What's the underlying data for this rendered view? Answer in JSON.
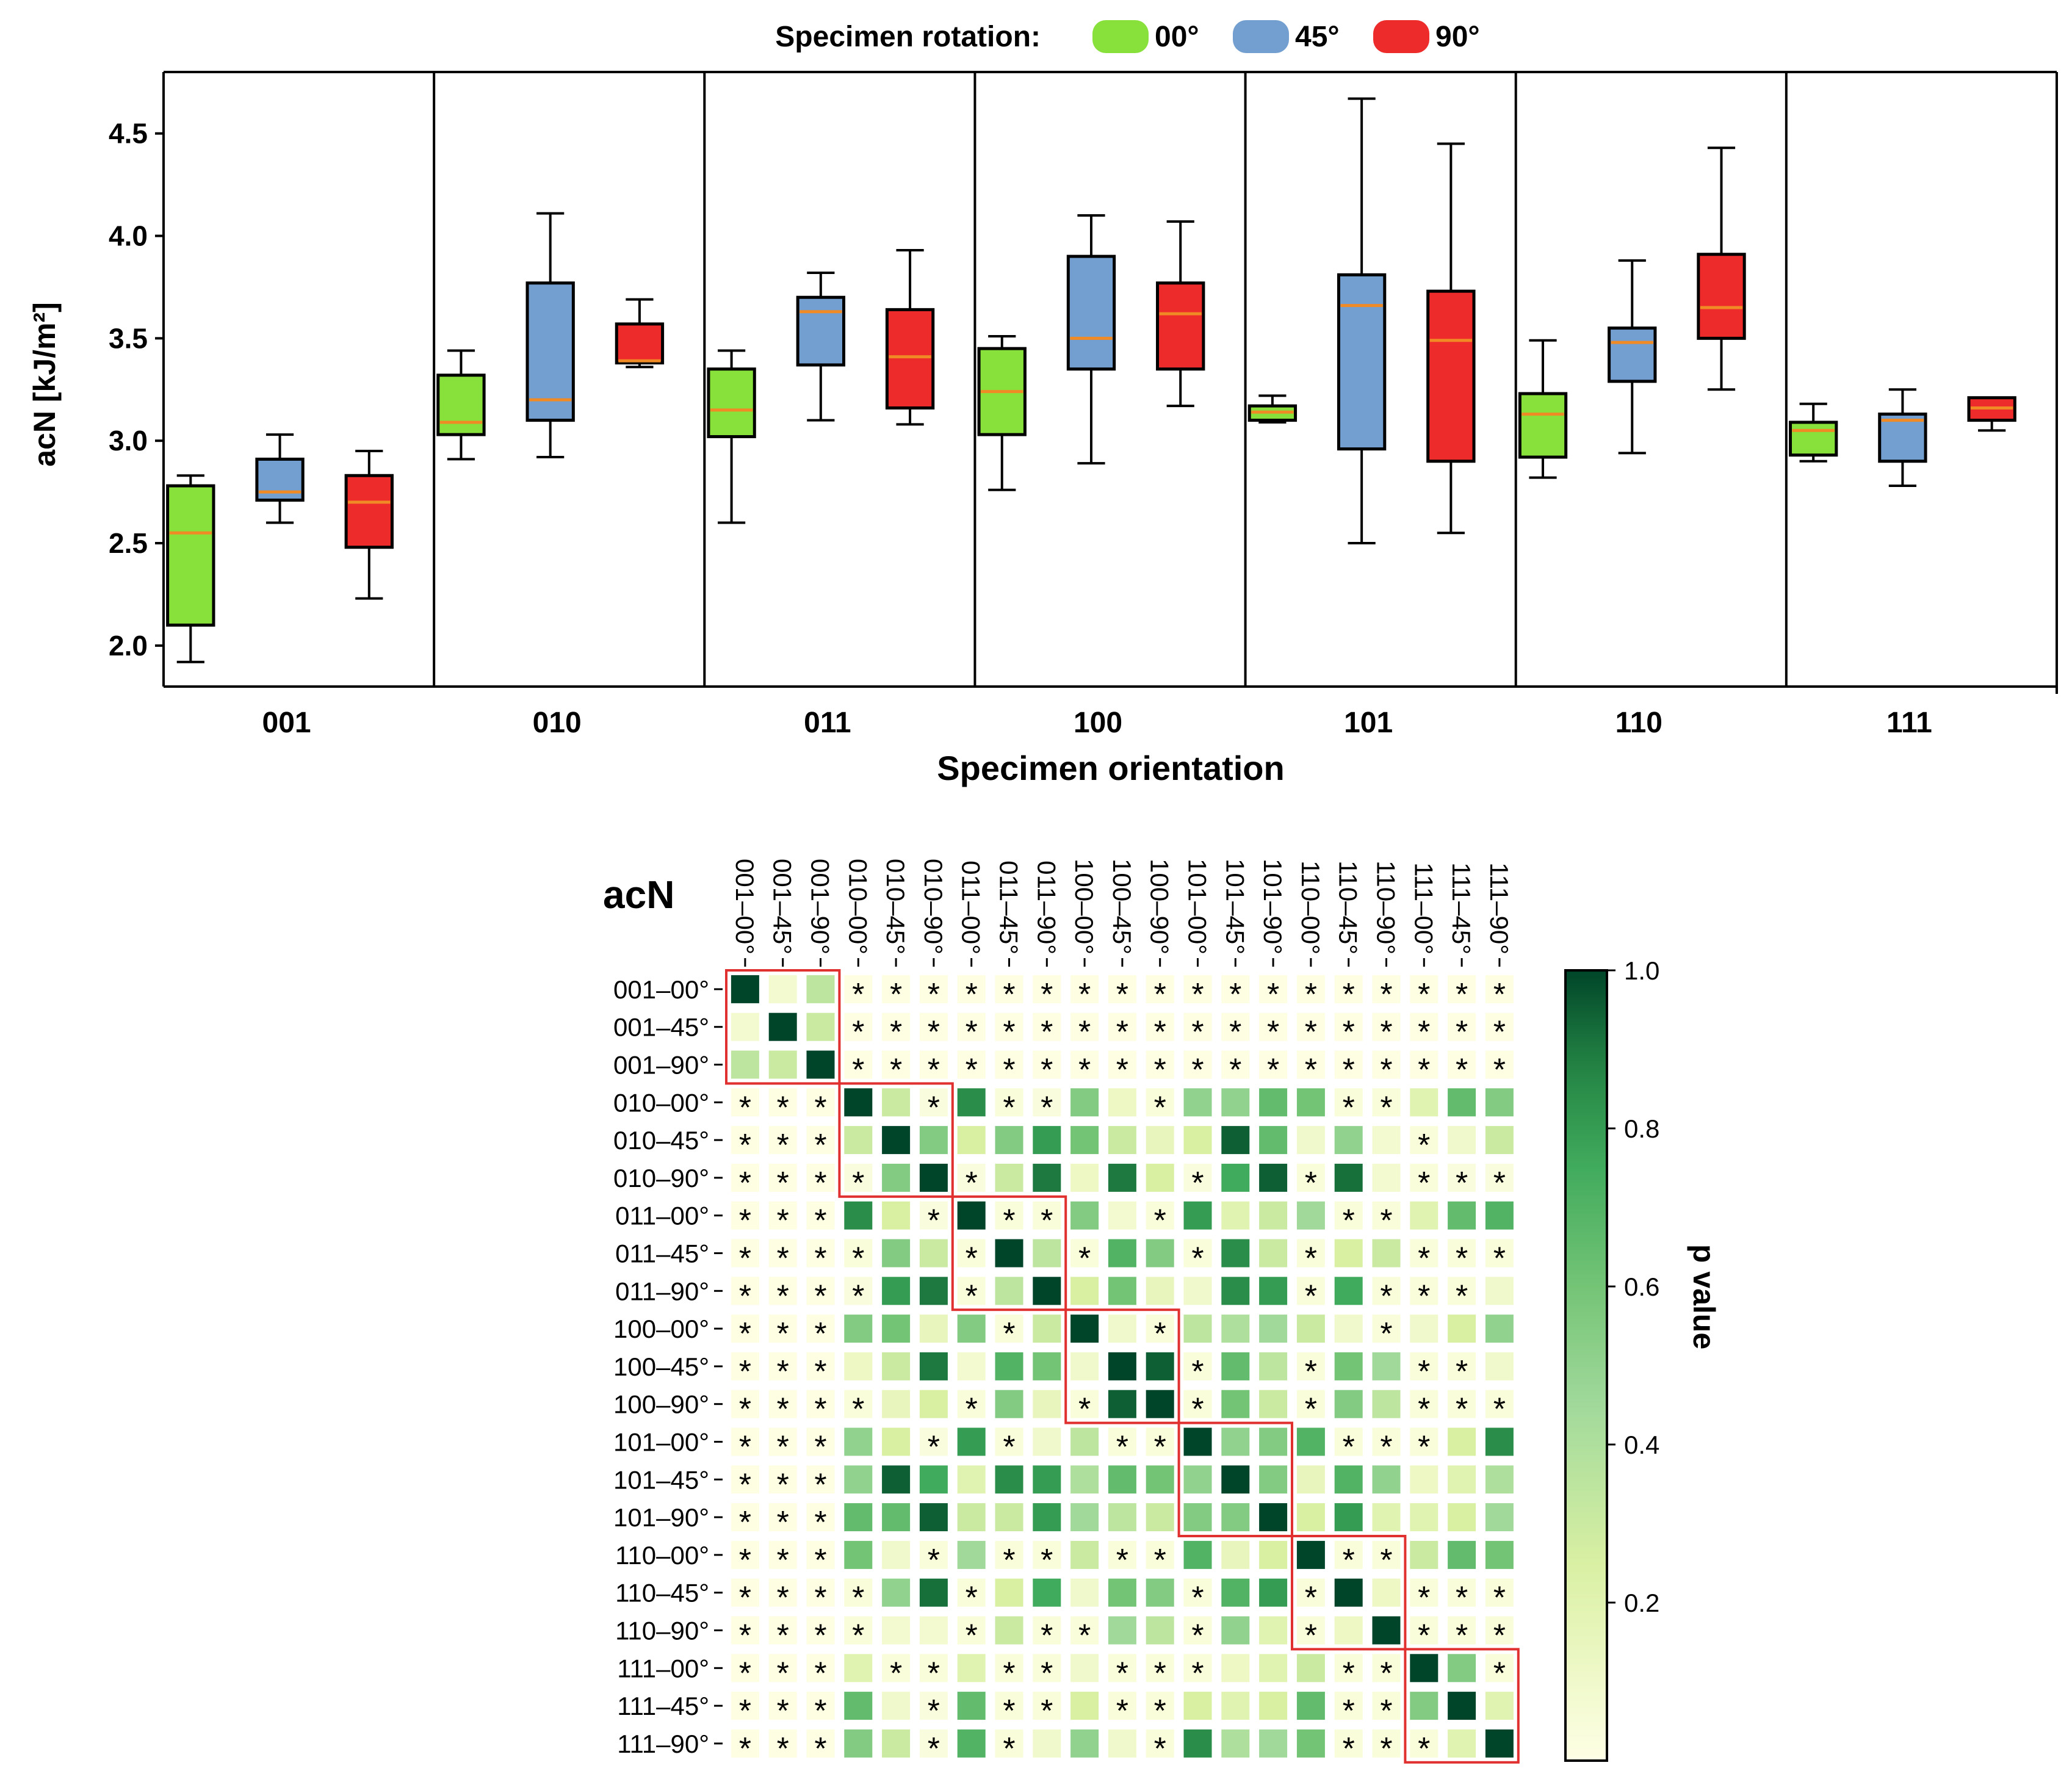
{
  "legend": {
    "title": "Specimen rotation:",
    "items": [
      {
        "label": "00°",
        "color": "#88E03A"
      },
      {
        "label": "45°",
        "color": "#739FD0"
      },
      {
        "label": "90°",
        "color": "#EE2B2B"
      }
    ]
  },
  "chart_data": [
    {
      "type": "box",
      "title": "",
      "ylabel": "acN [kJ/m²]",
      "xlabel": "Specimen orientation",
      "ylim": [
        1.8,
        4.8
      ],
      "yticks": [
        "2.0",
        "2.5",
        "3.0",
        "3.5",
        "4.0",
        "4.5"
      ],
      "median_color": "#F08A24",
      "categories": [
        "001",
        "010",
        "011",
        "100",
        "101",
        "110",
        "111"
      ],
      "series": [
        {
          "name": "00°",
          "color": "#88E03A",
          "boxes": [
            {
              "min": 1.92,
              "q1": 2.1,
              "median": 2.55,
              "q3": 2.78,
              "max": 2.83
            },
            {
              "min": 2.91,
              "q1": 3.03,
              "median": 3.09,
              "q3": 3.32,
              "max": 3.44
            },
            {
              "min": 2.6,
              "q1": 3.02,
              "median": 3.15,
              "q3": 3.35,
              "max": 3.44
            },
            {
              "min": 2.76,
              "q1": 3.03,
              "median": 3.24,
              "q3": 3.45,
              "max": 3.51
            },
            {
              "min": 3.09,
              "q1": 3.1,
              "median": 3.14,
              "q3": 3.17,
              "max": 3.22
            },
            {
              "min": 2.82,
              "q1": 2.92,
              "median": 3.13,
              "q3": 3.23,
              "max": 3.49
            },
            {
              "min": 2.9,
              "q1": 2.93,
              "median": 3.05,
              "q3": 3.09,
              "max": 3.18
            }
          ]
        },
        {
          "name": "45°",
          "color": "#739FD0",
          "boxes": [
            {
              "min": 2.6,
              "q1": 2.71,
              "median": 2.75,
              "q3": 2.91,
              "max": 3.03
            },
            {
              "min": 2.92,
              "q1": 3.1,
              "median": 3.2,
              "q3": 3.77,
              "max": 4.11
            },
            {
              "min": 3.1,
              "q1": 3.37,
              "median": 3.63,
              "q3": 3.7,
              "max": 3.82
            },
            {
              "min": 2.89,
              "q1": 3.35,
              "median": 3.5,
              "q3": 3.9,
              "max": 4.1
            },
            {
              "min": 2.5,
              "q1": 2.96,
              "median": 3.66,
              "q3": 3.81,
              "max": 4.67
            },
            {
              "min": 2.94,
              "q1": 3.29,
              "median": 3.48,
              "q3": 3.55,
              "max": 3.88
            },
            {
              "min": 2.78,
              "q1": 2.9,
              "median": 3.1,
              "q3": 3.13,
              "max": 3.25
            }
          ]
        },
        {
          "name": "90°",
          "color": "#EE2B2B",
          "boxes": [
            {
              "min": 2.23,
              "q1": 2.48,
              "median": 2.7,
              "q3": 2.83,
              "max": 2.95
            },
            {
              "min": 3.36,
              "q1": 3.38,
              "median": 3.39,
              "q3": 3.57,
              "max": 3.69
            },
            {
              "min": 3.08,
              "q1": 3.16,
              "median": 3.41,
              "q3": 3.64,
              "max": 3.93
            },
            {
              "min": 3.17,
              "q1": 3.35,
              "median": 3.62,
              "q3": 3.77,
              "max": 4.07
            },
            {
              "min": 2.55,
              "q1": 2.9,
              "median": 3.49,
              "q3": 3.73,
              "max": 4.45
            },
            {
              "min": 3.25,
              "q1": 3.5,
              "median": 3.65,
              "q3": 3.91,
              "max": 4.43
            },
            {
              "min": 3.05,
              "q1": 3.1,
              "median": 3.16,
              "q3": 3.21,
              "max": 3.21
            }
          ]
        }
      ]
    },
    {
      "type": "heatmap",
      "title": "acN",
      "labels": [
        "001–00°",
        "001–45°",
        "001–90°",
        "010–00°",
        "010–45°",
        "010–90°",
        "011–00°",
        "011–45°",
        "011–90°",
        "100–00°",
        "100–45°",
        "100–90°",
        "101–00°",
        "101–45°",
        "101–90°",
        "110–00°",
        "110–45°",
        "110–90°",
        "111–00°",
        "111–45°",
        "111–90°"
      ],
      "colorbar": {
        "label": "p value",
        "range": [
          0,
          1.0
        ],
        "ticks": [
          "0.2",
          "0.4",
          "0.6",
          "0.8",
          "1.0"
        ]
      },
      "significance_marker": "*",
      "values": [
        [
          1.0,
          0.08,
          0.35,
          0.01,
          0.01,
          0.01,
          0.01,
          0.01,
          0.01,
          0.01,
          0.01,
          0.01,
          0.01,
          0.01,
          0.01,
          0.01,
          0.01,
          0.01,
          0.01,
          0.01,
          0.01
        ],
        [
          0.08,
          1.0,
          0.3,
          0.01,
          0.01,
          0.01,
          0.01,
          0.01,
          0.01,
          0.01,
          0.01,
          0.01,
          0.01,
          0.01,
          0.01,
          0.01,
          0.01,
          0.01,
          0.01,
          0.01,
          0.01
        ],
        [
          0.35,
          0.3,
          1.0,
          0.01,
          0.01,
          0.01,
          0.01,
          0.01,
          0.01,
          0.01,
          0.01,
          0.01,
          0.01,
          0.01,
          0.01,
          0.01,
          0.01,
          0.01,
          0.01,
          0.01,
          0.01
        ],
        [
          0.01,
          0.01,
          0.01,
          1.0,
          0.3,
          0.03,
          0.85,
          0.04,
          0.03,
          0.55,
          0.12,
          0.04,
          0.5,
          0.5,
          0.65,
          0.6,
          0.04,
          0.04,
          0.2,
          0.65,
          0.55
        ],
        [
          0.01,
          0.01,
          0.01,
          0.3,
          1.0,
          0.55,
          0.25,
          0.55,
          0.8,
          0.6,
          0.3,
          0.15,
          0.25,
          0.95,
          0.65,
          0.1,
          0.5,
          0.08,
          0.04,
          0.1,
          0.3
        ],
        [
          0.01,
          0.01,
          0.01,
          0.03,
          0.55,
          1.0,
          0.03,
          0.3,
          0.9,
          0.12,
          0.9,
          0.25,
          0.03,
          0.75,
          0.95,
          0.04,
          0.92,
          0.08,
          0.04,
          0.03,
          0.03
        ],
        [
          0.01,
          0.01,
          0.01,
          0.85,
          0.25,
          0.03,
          1.0,
          0.04,
          0.04,
          0.55,
          0.08,
          0.04,
          0.8,
          0.2,
          0.3,
          0.45,
          0.04,
          0.04,
          0.2,
          0.65,
          0.7
        ],
        [
          0.01,
          0.01,
          0.01,
          0.04,
          0.55,
          0.3,
          0.04,
          1.0,
          0.35,
          0.04,
          0.7,
          0.55,
          0.04,
          0.85,
          0.3,
          0.04,
          0.25,
          0.3,
          0.04,
          0.04,
          0.04
        ],
        [
          0.01,
          0.01,
          0.01,
          0.03,
          0.8,
          0.9,
          0.04,
          0.35,
          1.0,
          0.25,
          0.6,
          0.15,
          0.1,
          0.85,
          0.8,
          0.04,
          0.75,
          0.04,
          0.04,
          0.04,
          0.1
        ],
        [
          0.01,
          0.01,
          0.01,
          0.55,
          0.6,
          0.15,
          0.55,
          0.04,
          0.3,
          1.0,
          0.1,
          0.04,
          0.35,
          0.4,
          0.45,
          0.3,
          0.1,
          0.04,
          0.1,
          0.25,
          0.5
        ],
        [
          0.01,
          0.01,
          0.01,
          0.12,
          0.3,
          0.9,
          0.08,
          0.7,
          0.6,
          0.1,
          1.0,
          0.95,
          0.04,
          0.65,
          0.35,
          0.04,
          0.6,
          0.45,
          0.04,
          0.04,
          0.1
        ],
        [
          0.01,
          0.01,
          0.01,
          0.04,
          0.15,
          0.25,
          0.04,
          0.55,
          0.15,
          0.04,
          0.95,
          1.0,
          0.04,
          0.6,
          0.3,
          0.04,
          0.55,
          0.35,
          0.04,
          0.04,
          0.04
        ],
        [
          0.01,
          0.01,
          0.01,
          0.5,
          0.25,
          0.03,
          0.8,
          0.04,
          0.1,
          0.35,
          0.04,
          0.04,
          1.0,
          0.5,
          0.55,
          0.7,
          0.04,
          0.04,
          0.04,
          0.25,
          0.85
        ],
        [
          0.01,
          0.01,
          0.01,
          0.5,
          0.95,
          0.75,
          0.2,
          0.85,
          0.8,
          0.4,
          0.65,
          0.6,
          0.5,
          1.0,
          0.55,
          0.15,
          0.7,
          0.5,
          0.12,
          0.2,
          0.4
        ],
        [
          0.01,
          0.01,
          0.01,
          0.65,
          0.65,
          0.95,
          0.3,
          0.3,
          0.8,
          0.45,
          0.35,
          0.3,
          0.55,
          0.55,
          1.0,
          0.25,
          0.8,
          0.2,
          0.2,
          0.25,
          0.45
        ],
        [
          0.01,
          0.01,
          0.01,
          0.6,
          0.1,
          0.04,
          0.45,
          0.04,
          0.04,
          0.3,
          0.04,
          0.04,
          0.7,
          0.15,
          0.25,
          1.0,
          0.04,
          0.04,
          0.3,
          0.65,
          0.6
        ],
        [
          0.01,
          0.01,
          0.01,
          0.04,
          0.5,
          0.92,
          0.04,
          0.25,
          0.75,
          0.1,
          0.6,
          0.55,
          0.04,
          0.7,
          0.8,
          0.04,
          1.0,
          0.12,
          0.04,
          0.04,
          0.04
        ],
        [
          0.01,
          0.01,
          0.01,
          0.04,
          0.08,
          0.08,
          0.04,
          0.3,
          0.04,
          0.04,
          0.45,
          0.35,
          0.04,
          0.5,
          0.2,
          0.04,
          0.12,
          1.0,
          0.04,
          0.04,
          0.04
        ],
        [
          0.01,
          0.01,
          0.01,
          0.2,
          0.04,
          0.04,
          0.2,
          0.04,
          0.04,
          0.1,
          0.04,
          0.04,
          0.04,
          0.12,
          0.2,
          0.3,
          0.04,
          0.04,
          1.0,
          0.55,
          0.04
        ],
        [
          0.01,
          0.01,
          0.01,
          0.65,
          0.1,
          0.03,
          0.65,
          0.04,
          0.04,
          0.25,
          0.04,
          0.04,
          0.25,
          0.2,
          0.25,
          0.65,
          0.04,
          0.04,
          0.55,
          1.0,
          0.2
        ],
        [
          0.01,
          0.01,
          0.01,
          0.55,
          0.3,
          0.03,
          0.7,
          0.04,
          0.1,
          0.5,
          0.1,
          0.04,
          0.85,
          0.4,
          0.45,
          0.6,
          0.04,
          0.04,
          0.04,
          0.2,
          1.0
        ]
      ],
      "significant": [
        [
          0,
          0,
          0,
          1,
          1,
          1,
          1,
          1,
          1,
          1,
          1,
          1,
          1,
          1,
          1,
          1,
          1,
          1,
          1,
          1,
          1
        ],
        [
          0,
          0,
          0,
          1,
          1,
          1,
          1,
          1,
          1,
          1,
          1,
          1,
          1,
          1,
          1,
          1,
          1,
          1,
          1,
          1,
          1
        ],
        [
          0,
          0,
          0,
          1,
          1,
          1,
          1,
          1,
          1,
          1,
          1,
          1,
          1,
          1,
          1,
          1,
          1,
          1,
          1,
          1,
          1
        ],
        [
          1,
          1,
          1,
          0,
          0,
          1,
          0,
          1,
          1,
          0,
          0,
          1,
          0,
          0,
          0,
          0,
          1,
          1,
          0,
          0,
          0
        ],
        [
          1,
          1,
          1,
          0,
          0,
          0,
          0,
          0,
          0,
          0,
          0,
          0,
          0,
          0,
          0,
          0,
          0,
          0,
          1,
          0,
          0
        ],
        [
          1,
          1,
          1,
          1,
          0,
          0,
          1,
          0,
          0,
          0,
          0,
          0,
          1,
          0,
          0,
          1,
          0,
          0,
          1,
          1,
          1
        ],
        [
          1,
          1,
          1,
          0,
          0,
          1,
          0,
          1,
          1,
          0,
          0,
          1,
          0,
          0,
          0,
          0,
          1,
          1,
          0,
          0,
          0
        ],
        [
          1,
          1,
          1,
          1,
          0,
          0,
          1,
          0,
          0,
          1,
          0,
          0,
          1,
          0,
          0,
          1,
          0,
          0,
          1,
          1,
          1
        ],
        [
          1,
          1,
          1,
          1,
          0,
          0,
          1,
          0,
          0,
          0,
          0,
          0,
          0,
          0,
          0,
          1,
          0,
          1,
          1,
          1,
          0
        ],
        [
          1,
          1,
          1,
          0,
          0,
          0,
          0,
          1,
          0,
          0,
          0,
          1,
          0,
          0,
          0,
          0,
          0,
          1,
          0,
          0,
          0
        ],
        [
          1,
          1,
          1,
          0,
          0,
          0,
          0,
          0,
          0,
          0,
          0,
          0,
          1,
          0,
          0,
          1,
          0,
          0,
          1,
          1,
          0
        ],
        [
          1,
          1,
          1,
          1,
          0,
          0,
          1,
          0,
          0,
          1,
          0,
          0,
          1,
          0,
          0,
          1,
          0,
          0,
          1,
          1,
          1
        ],
        [
          1,
          1,
          1,
          0,
          0,
          1,
          0,
          1,
          0,
          0,
          1,
          1,
          0,
          0,
          0,
          0,
          1,
          1,
          1,
          0,
          0
        ],
        [
          1,
          1,
          1,
          0,
          0,
          0,
          0,
          0,
          0,
          0,
          0,
          0,
          0,
          0,
          0,
          0,
          0,
          0,
          0,
          0,
          0
        ],
        [
          1,
          1,
          1,
          0,
          0,
          0,
          0,
          0,
          0,
          0,
          0,
          0,
          0,
          0,
          0,
          0,
          0,
          0,
          0,
          0,
          0
        ],
        [
          1,
          1,
          1,
          0,
          0,
          1,
          0,
          1,
          1,
          0,
          1,
          1,
          0,
          0,
          0,
          0,
          1,
          1,
          0,
          0,
          0
        ],
        [
          1,
          1,
          1,
          1,
          0,
          0,
          1,
          0,
          0,
          0,
          0,
          0,
          1,
          0,
          0,
          1,
          0,
          0,
          1,
          1,
          1
        ],
        [
          1,
          1,
          1,
          1,
          0,
          0,
          1,
          0,
          1,
          1,
          0,
          0,
          1,
          0,
          0,
          1,
          0,
          0,
          1,
          1,
          1
        ],
        [
          1,
          1,
          1,
          0,
          1,
          1,
          0,
          1,
          1,
          0,
          1,
          1,
          1,
          0,
          0,
          0,
          1,
          1,
          0,
          0,
          1
        ],
        [
          1,
          1,
          1,
          0,
          0,
          1,
          0,
          1,
          1,
          0,
          1,
          1,
          0,
          0,
          0,
          0,
          1,
          1,
          0,
          0,
          0
        ],
        [
          1,
          1,
          1,
          0,
          0,
          1,
          0,
          1,
          0,
          0,
          0,
          1,
          0,
          0,
          0,
          0,
          1,
          1,
          1,
          0,
          0
        ]
      ]
    }
  ]
}
